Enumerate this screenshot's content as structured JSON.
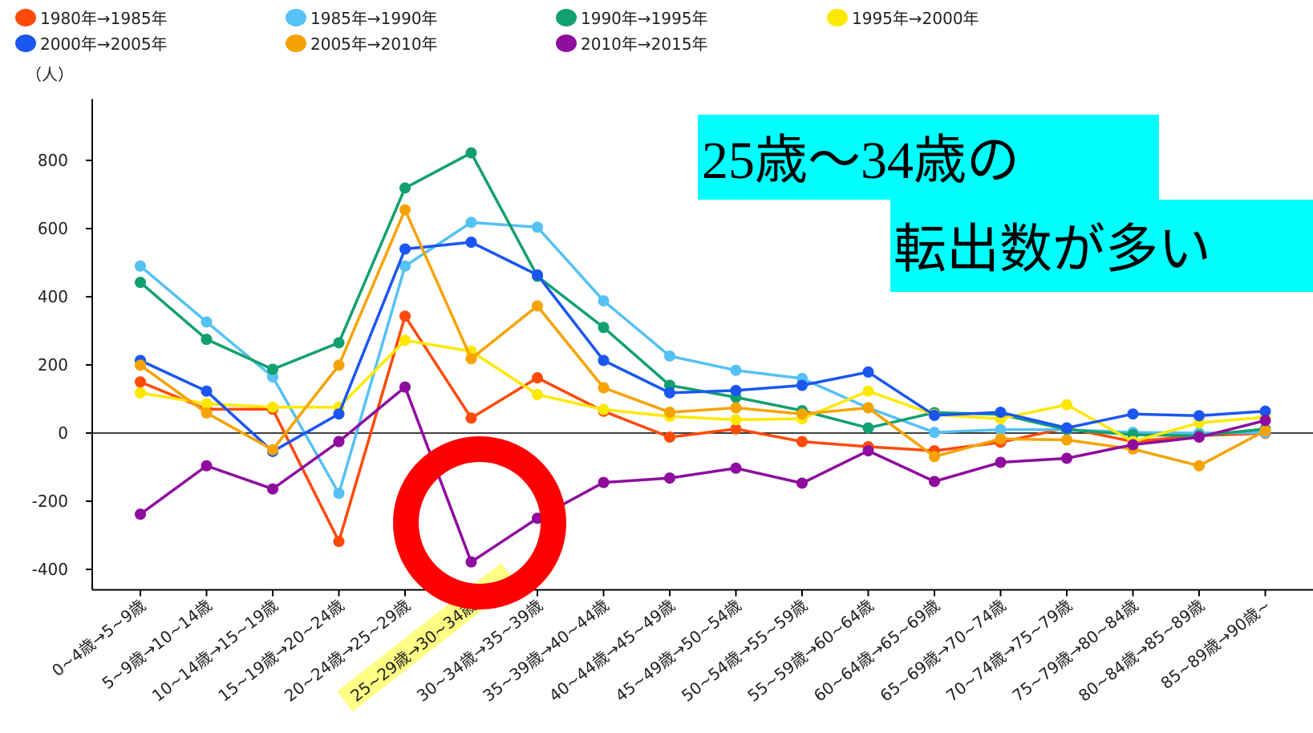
{
  "chart_data": {
    "type": "line",
    "y_axis_label": "（人）",
    "annotations": [
      "25歳～34歳の",
      "転出数が多い"
    ],
    "categories": [
      "0~4歳→5~9歳",
      "5~9歳→10~14歳",
      "10~14歳→15~19歳",
      "15~19歳→20~24歳",
      "20~24歳→25~29歳",
      "25~29歳→30~34歳",
      "30~34歳→35~39歳",
      "35~39歳→40~44歳",
      "40~44歳→45~49歳",
      "45~49歳→50~54歳",
      "50~54歳→55~59歳",
      "55~59歳→60~64歳",
      "60~64歳→65~69歳",
      "65~69歳→70~74歳",
      "70~74歳→75~79歳",
      "75~79歳→80~84歳",
      "80~84歳→85~89歳",
      "85~89歳→90歳~"
    ],
    "series": [
      {
        "name": "1980年→1985年",
        "color": "#ff4a0a",
        "values": [
          150,
          70,
          70,
          -318,
          343,
          44,
          162,
          64,
          -12,
          12,
          -25,
          -40,
          -52,
          -27,
          15,
          -25,
          -8,
          0
        ]
      },
      {
        "name": "1985年→1990年",
        "color": "#55c1f5",
        "values": [
          490,
          326,
          165,
          -177,
          490,
          618,
          604,
          388,
          226,
          184,
          160,
          74,
          2,
          10,
          10,
          2,
          0,
          2
        ]
      },
      {
        "name": "1990年→1995年",
        "color": "#12a06e",
        "values": [
          442,
          275,
          187,
          265,
          719,
          822,
          460,
          310,
          140,
          105,
          66,
          15,
          60,
          55,
          10,
          -5,
          -8,
          12
        ]
      },
      {
        "name": "1995年→2000年",
        "color": "#ffe800",
        "values": [
          118,
          86,
          76,
          76,
          272,
          240,
          113,
          69,
          49,
          39,
          42,
          123,
          54,
          42,
          83,
          -25,
          30,
          47
        ]
      },
      {
        "name": "2000年→2005年",
        "color": "#1a56f0",
        "values": [
          213,
          123,
          -54,
          56,
          540,
          560,
          464,
          213,
          118,
          125,
          140,
          179,
          52,
          61,
          15,
          56,
          51,
          64
        ]
      },
      {
        "name": "2005年→2010年",
        "color": "#f5a300",
        "values": [
          199,
          59,
          -49,
          199,
          655,
          218,
          373,
          133,
          61,
          74,
          56,
          74,
          -69,
          -17,
          -20,
          -47,
          -96,
          7
        ]
      },
      {
        "name": "2010年→2015年",
        "color": "#8e0c9e",
        "values": [
          -238,
          -96,
          -164,
          -25,
          135,
          -378,
          -250,
          -145,
          -132,
          -103,
          -147,
          -52,
          -142,
          -86,
          -74,
          -34,
          -12,
          37
        ]
      }
    ],
    "ylim": [
      -460,
      980
    ],
    "yticks": [
      -400,
      -200,
      0,
      200,
      400,
      600,
      800
    ]
  }
}
